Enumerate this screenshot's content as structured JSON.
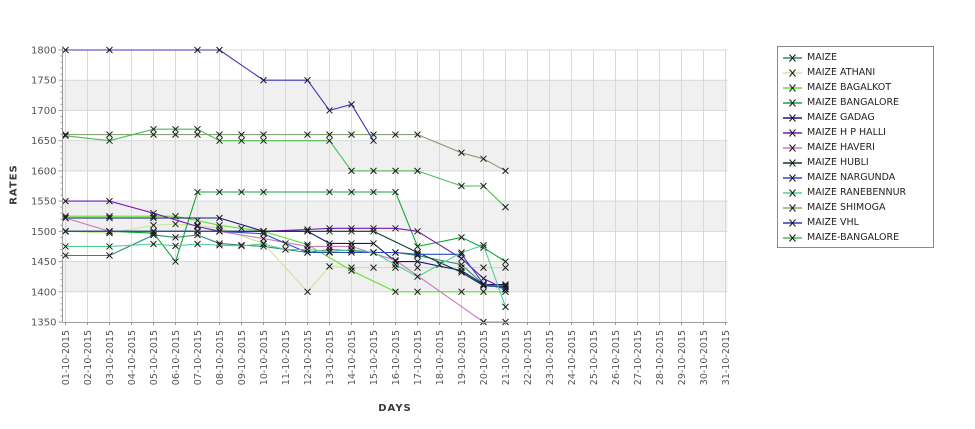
{
  "page": {
    "background": "#ffffff"
  },
  "axes": {
    "y_title": "RATES",
    "x_title": "DAYS",
    "y_ticks": [
      1350,
      1400,
      1450,
      1500,
      1550,
      1600,
      1650,
      1700,
      1750,
      1800
    ],
    "x_tick_labels": [
      "01-10-2015",
      "02-10-2015",
      "03-10-2015",
      "04-10-2015",
      "05-10-2015",
      "06-10-2015",
      "07-10-2015",
      "08-10-2015",
      "09-10-2015",
      "10-10-2015",
      "11-10-2015",
      "12-10-2015",
      "13-10-2015",
      "14-10-2015",
      "15-10-2015",
      "16-10-2015",
      "17-10-2015",
      "18-10-2015",
      "19-10-2015",
      "20-10-2015",
      "21-10-2015",
      "22-10-2015",
      "23-10-2015",
      "24-10-2015",
      "25-10-2015",
      "26-10-2015",
      "27-10-2015",
      "28-10-2015",
      "29-10-2015",
      "30-10-2015",
      "31-10-2015"
    ]
  },
  "style_colors": {
    "band_gray": "#f0f0f0",
    "gridline": "#d9d9d9",
    "axis_line": "#9a9a9a",
    "tick_text": "#555555",
    "marker": "#1a1a1a",
    "legend_border": "#8a8a8a"
  },
  "chart_data": {
    "type": "line",
    "title": "",
    "xlabel": "DAYS",
    "ylabel": "RATES",
    "ylim": [
      1350,
      1800
    ],
    "grid": true,
    "legend_position": "right",
    "marker": "x",
    "x_categories": [
      "01-10-2015",
      "02-10-2015",
      "03-10-2015",
      "04-10-2015",
      "05-10-2015",
      "06-10-2015",
      "07-10-2015",
      "08-10-2015",
      "09-10-2015",
      "10-10-2015",
      "11-10-2015",
      "12-10-2015",
      "13-10-2015",
      "14-10-2015",
      "15-10-2015",
      "16-10-2015",
      "17-10-2015",
      "18-10-2015",
      "19-10-2015",
      "20-10-2015",
      "21-10-2015",
      "22-10-2015",
      "23-10-2015",
      "24-10-2015",
      "25-10-2015",
      "26-10-2015",
      "27-10-2015",
      "28-10-2015",
      "29-10-2015",
      "30-10-2015",
      "31-10-2015"
    ],
    "series": [
      {
        "name": "MAIZE",
        "color": "#2e8b72",
        "points": [
          [
            1,
            1460
          ],
          [
            3,
            1460
          ],
          [
            5,
            1494
          ],
          [
            6,
            1490
          ],
          [
            7,
            1494
          ],
          [
            8,
            1480
          ],
          [
            9,
            1477
          ],
          [
            10,
            1475
          ],
          [
            12,
            1465
          ],
          [
            13,
            1470
          ],
          [
            14,
            1468
          ],
          [
            15,
            1465
          ],
          [
            16,
            1465
          ],
          [
            17,
            1460
          ],
          [
            19,
            1445
          ],
          [
            20,
            1412
          ],
          [
            21,
            1410
          ]
        ]
      },
      {
        "name": "MAIZE ATHANI",
        "color": "#c9e79e",
        "points": [
          [
            1,
            1500
          ],
          [
            3,
            1497
          ],
          [
            5,
            1510
          ],
          [
            6,
            1512
          ],
          [
            7,
            1510
          ],
          [
            8,
            1505
          ],
          [
            10,
            1480
          ],
          [
            12,
            1400
          ],
          [
            13,
            1442
          ],
          [
            14,
            1440
          ],
          [
            15,
            1440
          ],
          [
            16,
            1440
          ],
          [
            17,
            1440
          ],
          [
            19,
            1440
          ],
          [
            20,
            1440
          ],
          [
            21,
            1440
          ]
        ]
      },
      {
        "name": "MAIZE BAGALKOT",
        "color": "#5ce42e",
        "points": [
          [
            1,
            1525
          ],
          [
            3,
            1525
          ],
          [
            5,
            1525
          ],
          [
            6,
            1525
          ],
          [
            7,
            1518
          ],
          [
            8,
            1510
          ],
          [
            9,
            1505
          ],
          [
            10,
            1500
          ],
          [
            12,
            1478
          ],
          [
            14,
            1435
          ],
          [
            16,
            1400
          ],
          [
            17,
            1400
          ],
          [
            19,
            1400
          ],
          [
            20,
            1400
          ],
          [
            21,
            1400
          ]
        ]
      },
      {
        "name": "MAIZE BANGALORE",
        "color": "#12a53a",
        "points": [
          [
            1,
            1500
          ],
          [
            3,
            1500
          ],
          [
            5,
            1497
          ],
          [
            6,
            1450
          ],
          [
            7,
            1565
          ],
          [
            8,
            1565
          ],
          [
            9,
            1565
          ],
          [
            10,
            1565
          ],
          [
            13,
            1565
          ],
          [
            14,
            1565
          ],
          [
            15,
            1565
          ],
          [
            16,
            1565
          ],
          [
            17,
            1475
          ],
          [
            19,
            1490
          ],
          [
            20,
            1473
          ],
          [
            21,
            1450
          ]
        ]
      },
      {
        "name": "MAIZE GADAG",
        "color": "#16167e",
        "points": [
          [
            1,
            1522
          ],
          [
            3,
            1522
          ],
          [
            5,
            1522
          ],
          [
            8,
            1522
          ],
          [
            10,
            1500
          ],
          [
            12,
            1500
          ],
          [
            13,
            1480
          ],
          [
            14,
            1480
          ],
          [
            15,
            1480
          ],
          [
            16,
            1450
          ],
          [
            17,
            1450
          ],
          [
            19,
            1435
          ],
          [
            20,
            1412
          ],
          [
            21,
            1412
          ]
        ]
      },
      {
        "name": "MAIZE H P HALLI",
        "color": "#7718b4",
        "points": [
          [
            1,
            1550
          ],
          [
            3,
            1550
          ],
          [
            5,
            1530
          ],
          [
            7,
            1508
          ],
          [
            8,
            1500
          ],
          [
            10,
            1500
          ],
          [
            12,
            1503
          ],
          [
            13,
            1505
          ],
          [
            14,
            1505
          ],
          [
            15,
            1505
          ],
          [
            16,
            1505
          ],
          [
            17,
            1500
          ],
          [
            19,
            1455
          ],
          [
            20,
            1422
          ],
          [
            21,
            1404
          ]
        ]
      },
      {
        "name": "MAIZE HAVERI",
        "color": "#cb79c4",
        "points": [
          [
            1,
            1522
          ],
          [
            3,
            1500
          ],
          [
            5,
            1500
          ],
          [
            7,
            1500
          ],
          [
            8,
            1500
          ],
          [
            10,
            1488
          ],
          [
            12,
            1475
          ],
          [
            13,
            1475
          ],
          [
            14,
            1475
          ],
          [
            16,
            1452
          ],
          [
            20,
            1350
          ],
          [
            21,
            1350
          ]
        ]
      },
      {
        "name": "MAIZE HUBLI",
        "color": "#0e3c34",
        "points": [
          [
            1,
            1500
          ],
          [
            3,
            1500
          ],
          [
            5,
            1500
          ],
          [
            7,
            1500
          ],
          [
            8,
            1500
          ],
          [
            10,
            1500
          ],
          [
            12,
            1500
          ],
          [
            13,
            1500
          ],
          [
            14,
            1500
          ],
          [
            15,
            1500
          ],
          [
            17,
            1465
          ],
          [
            19,
            1432
          ],
          [
            20,
            1410
          ],
          [
            21,
            1408
          ]
        ]
      },
      {
        "name": "MAIZE NARGUNDA",
        "color": "#2a4fc0",
        "points": [
          [
            1,
            1500
          ],
          [
            3,
            1500
          ],
          [
            5,
            1500
          ],
          [
            7,
            1500
          ],
          [
            8,
            1500
          ],
          [
            10,
            1496
          ],
          [
            11,
            1480
          ],
          [
            12,
            1465
          ],
          [
            13,
            1465
          ],
          [
            14,
            1465
          ],
          [
            15,
            1465
          ],
          [
            16,
            1465
          ],
          [
            17,
            1462
          ],
          [
            19,
            1462
          ],
          [
            20,
            1413
          ],
          [
            21,
            1405
          ]
        ]
      },
      {
        "name": "MAIZE RANEBENNUR",
        "color": "#50d094",
        "points": [
          [
            1,
            1475
          ],
          [
            3,
            1475
          ],
          [
            5,
            1479
          ],
          [
            6,
            1476
          ],
          [
            7,
            1479
          ],
          [
            8,
            1477
          ],
          [
            9,
            1476
          ],
          [
            10,
            1479
          ],
          [
            11,
            1470
          ],
          [
            12,
            1470
          ],
          [
            13,
            1466
          ],
          [
            14,
            1470
          ],
          [
            15,
            1465
          ],
          [
            16,
            1445
          ],
          [
            17,
            1425
          ],
          [
            18,
            1445
          ],
          [
            19,
            1465
          ],
          [
            20,
            1477
          ],
          [
            21,
            1375
          ]
        ]
      },
      {
        "name": "MAIZE SHIMOGA",
        "color": "#8ca075",
        "points": [
          [
            1,
            1660
          ],
          [
            3,
            1660
          ],
          [
            5,
            1660
          ],
          [
            6,
            1660
          ],
          [
            7,
            1660
          ],
          [
            8,
            1660
          ],
          [
            9,
            1660
          ],
          [
            10,
            1660
          ],
          [
            12,
            1660
          ],
          [
            13,
            1660
          ],
          [
            14,
            1660
          ],
          [
            15,
            1660
          ],
          [
            16,
            1660
          ],
          [
            17,
            1660
          ],
          [
            19,
            1630
          ],
          [
            20,
            1620
          ],
          [
            21,
            1600
          ]
        ]
      },
      {
        "name": "MAIZE VHL",
        "color": "#3a35b2",
        "points": [
          [
            1,
            1800
          ],
          [
            3,
            1800
          ],
          [
            7,
            1800
          ],
          [
            8,
            1800
          ],
          [
            10,
            1750
          ],
          [
            12,
            1750
          ],
          [
            13,
            1700
          ],
          [
            14,
            1710
          ],
          [
            15,
            1650
          ]
        ]
      },
      {
        "name": "MAIZE-BANGALORE",
        "color": "#4dbb57",
        "points": [
          [
            1,
            1658
          ],
          [
            3,
            1650
          ],
          [
            5,
            1669
          ],
          [
            6,
            1669
          ],
          [
            7,
            1669
          ],
          [
            8,
            1650
          ],
          [
            9,
            1650
          ],
          [
            10,
            1650
          ],
          [
            13,
            1650
          ],
          [
            14,
            1600
          ],
          [
            15,
            1600
          ],
          [
            16,
            1600
          ],
          [
            17,
            1600
          ],
          [
            19,
            1575
          ],
          [
            20,
            1575
          ],
          [
            21,
            1540
          ]
        ]
      }
    ]
  }
}
